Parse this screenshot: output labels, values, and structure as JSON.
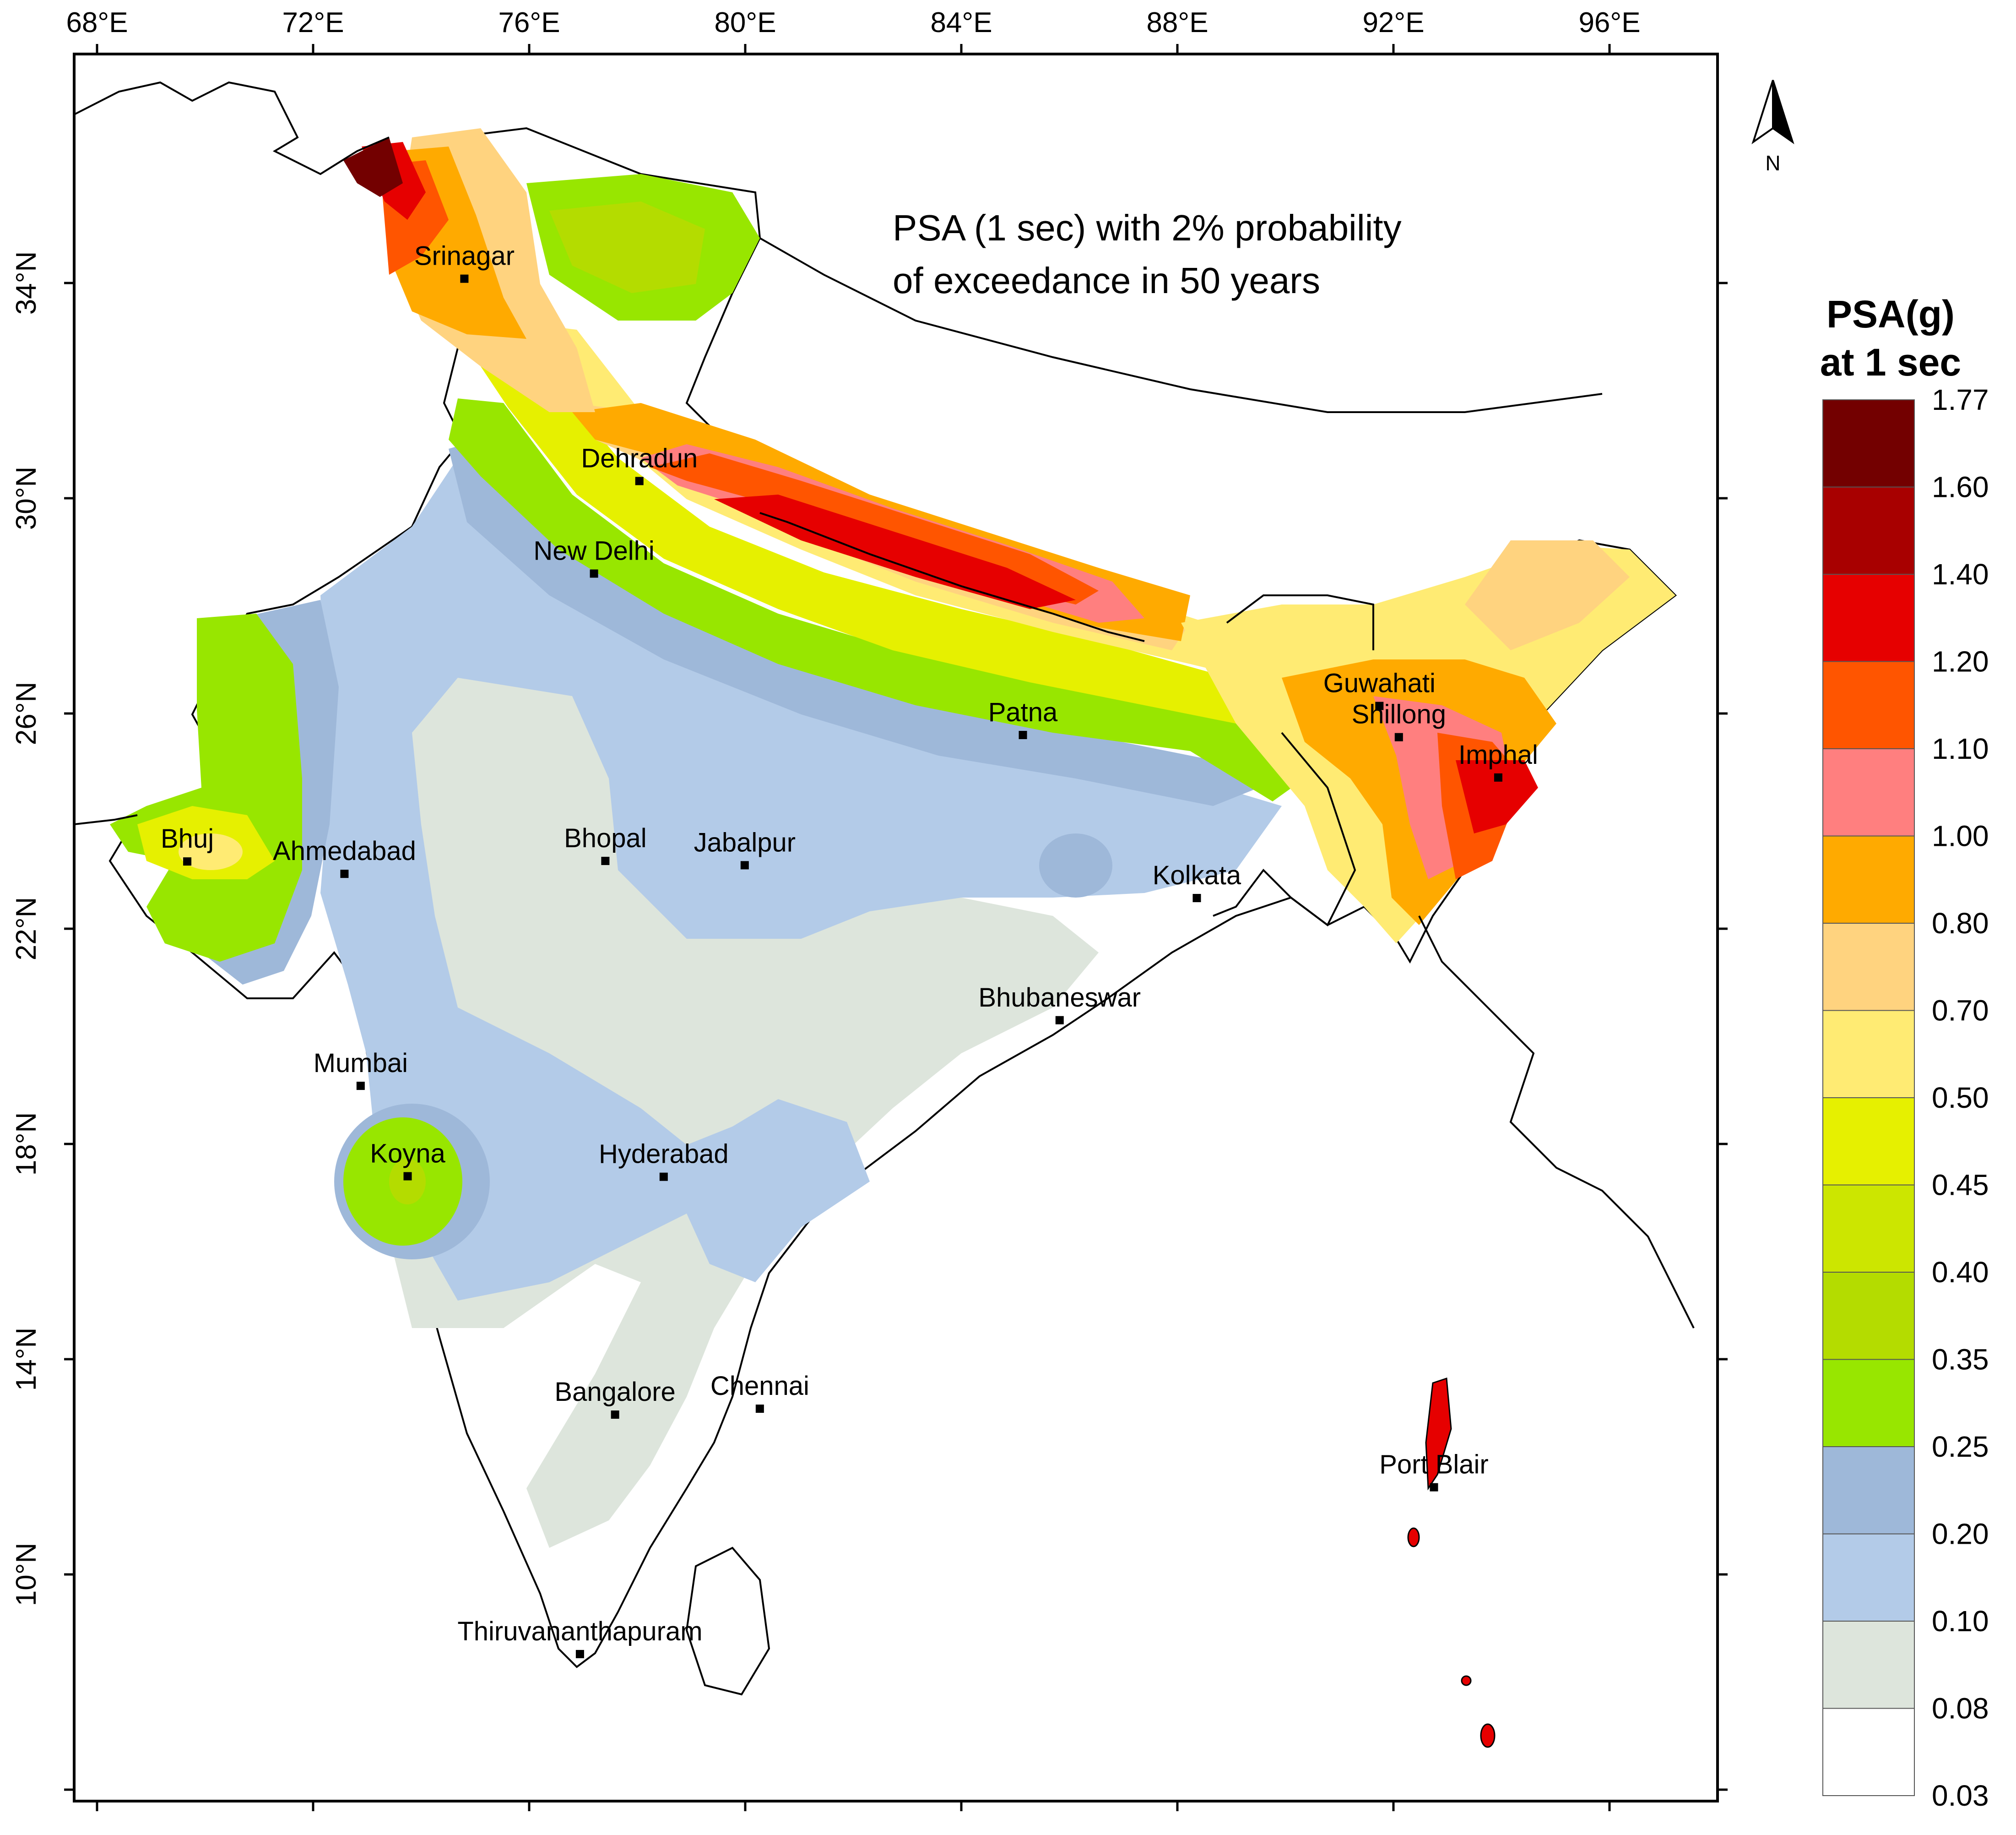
{
  "map": {
    "title_line1": "PSA (1 sec) with 2% probability",
    "title_line2": "of exceedance in 50 years",
    "north_label": "N",
    "lon_ticks": [
      "68°E",
      "72°E",
      "76°E",
      "80°E",
      "84°E",
      "88°E",
      "92°E",
      "96°E"
    ],
    "lat_ticks": [
      "34°N",
      "30°N",
      "26°N",
      "22°N",
      "18°N",
      "14°N",
      "10°N"
    ],
    "cities": [
      {
        "name": "Srinagar",
        "lon": 74.8,
        "lat": 34.08
      },
      {
        "name": "Dehradun",
        "lon": 78.04,
        "lat": 30.32
      },
      {
        "name": "New Delhi",
        "lon": 77.2,
        "lat": 28.6
      },
      {
        "name": "Patna",
        "lon": 85.14,
        "lat": 25.6
      },
      {
        "name": "Guwahati",
        "lon": 91.74,
        "lat": 26.14
      },
      {
        "name": "Shillong",
        "lon": 92.1,
        "lat": 25.56
      },
      {
        "name": "Imphal",
        "lon": 93.94,
        "lat": 24.81
      },
      {
        "name": "Bhuj",
        "lon": 69.67,
        "lat": 23.25
      },
      {
        "name": "Ahmedabad",
        "lon": 72.58,
        "lat": 23.02
      },
      {
        "name": "Bhopal",
        "lon": 77.41,
        "lat": 23.26
      },
      {
        "name": "Jabalpur",
        "lon": 79.99,
        "lat": 23.18
      },
      {
        "name": "Kolkata",
        "lon": 88.36,
        "lat": 22.57
      },
      {
        "name": "Bhubaneswar",
        "lon": 85.82,
        "lat": 20.3
      },
      {
        "name": "Mumbai",
        "lon": 72.88,
        "lat": 19.08
      },
      {
        "name": "Koyna",
        "lon": 73.75,
        "lat": 17.4
      },
      {
        "name": "Hyderabad",
        "lon": 78.49,
        "lat": 17.39
      },
      {
        "name": "Bangalore",
        "lon": 77.59,
        "lat": 12.97
      },
      {
        "name": "Chennai",
        "lon": 80.27,
        "lat": 13.08
      },
      {
        "name": "Port Blair",
        "lon": 92.75,
        "lat": 11.62
      },
      {
        "name": "Thiruvananthapuram",
        "lon": 76.94,
        "lat": 8.52
      }
    ]
  },
  "legend": {
    "title_line1": "PSA(g)",
    "title_line2": "at 1 sec",
    "values": [
      "1.77",
      "1.60",
      "1.40",
      "1.20",
      "1.10",
      "1.00",
      "0.80",
      "0.70",
      "0.50",
      "0.45",
      "0.40",
      "0.35",
      "0.25",
      "0.20",
      "0.10",
      "0.08",
      "0.03"
    ],
    "colors": [
      "#730000",
      "#a80000",
      "#e60000",
      "#ff5500",
      "#ff7f7f",
      "#ffaa00",
      "#ffd37f",
      "#ffeb73",
      "#e6f000",
      "#cce600",
      "#b4dc00",
      "#98e600",
      "#9eb8d9",
      "#b3cbe8",
      "#dde5dc",
      "#ffffff"
    ]
  }
}
